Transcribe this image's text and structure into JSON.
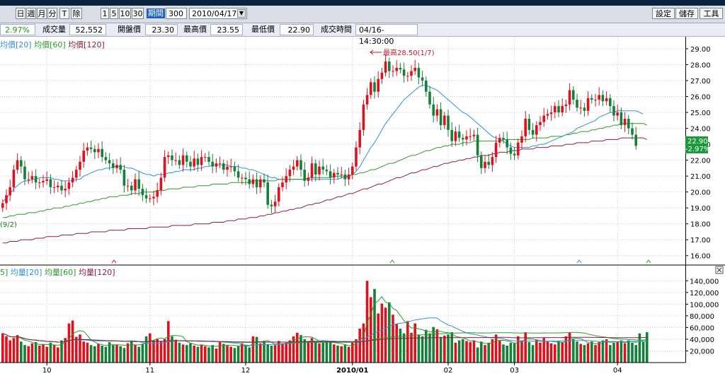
{
  "toolbar": {
    "period_buttons": [
      "日",
      "週",
      "月",
      "分",
      "T",
      "除"
    ],
    "number_buttons": [
      "1",
      "5",
      "10",
      "30"
    ],
    "period_label": "期間",
    "period_value": "300",
    "date_value": "2010/04/17",
    "right_buttons": [
      "設定",
      "儲存",
      "工具"
    ]
  },
  "quote": {
    "change_pct": "2.97%",
    "volume_label": "成交量",
    "volume_value": "52,552",
    "open_label": "開盤價",
    "open_value": "23.30",
    "high_label": "最高價",
    "high_value": "23.55",
    "low_label": "最低價",
    "low_value": "22.90",
    "time_label": "成交時間",
    "time_value": "04/16-14:30:00"
  },
  "price_legend": [
    "均價[20]",
    "均價[60]",
    "均價[120]"
  ],
  "volume_legend": [
    "5]",
    "均量[20]",
    "均量[60]",
    "均量[120]"
  ],
  "annotations": {
    "high": "最高28.50(1/7)",
    "low_left": "(9/2)"
  },
  "price_tags": {
    "last": "22.90",
    "change": "-2.97%"
  },
  "chart_data": [
    {
      "type": "candlestick",
      "x_tick_labels": [
        "10",
        "11",
        "12",
        "2010/01",
        "02",
        "03",
        "04"
      ],
      "y_tick_labels": [
        "16.00",
        "17.00",
        "18.00",
        "19.00",
        "20.00",
        "21.00",
        "22.00",
        "23.00",
        "24.00",
        "25.00",
        "26.00",
        "27.00",
        "28.00",
        "29.00"
      ],
      "ylim": [
        15.5,
        29.4
      ],
      "close": [
        19.3,
        19.8,
        20.3,
        21.4,
        22.0,
        21.6,
        20.8,
        20.8,
        21.0,
        20.6,
        20.6,
        20.7,
        20.8,
        20.3,
        20.3,
        20.4,
        20.1,
        20.2,
        20.6,
        20.9,
        21.4,
        21.9,
        22.6,
        22.8,
        22.7,
        22.5,
        22.7,
        22.2,
        22.0,
        21.8,
        21.5,
        21.7,
        21.4,
        20.4,
        20.4,
        20.1,
        20.8,
        20.2,
        19.8,
        19.6,
        19.6,
        19.7,
        20.1,
        20.9,
        22.2,
        22.3,
        22.0,
        22.0,
        21.7,
        22.3,
        21.9,
        21.6,
        22.1,
        21.7,
        22.2,
        22.2,
        21.9,
        21.6,
        21.8,
        21.8,
        21.4,
        21.6,
        21.6,
        21.3,
        20.9,
        20.9,
        20.8,
        20.5,
        20.8,
        20.3,
        20.8,
        20.6,
        19.2,
        19.1,
        19.4,
        20.3,
        20.6,
        21.0,
        21.4,
        21.6,
        22.0,
        21.4,
        20.7,
        20.9,
        21.8,
        21.1,
        21.6,
        21.4,
        21.3,
        20.9,
        21.2,
        21.1,
        21.1,
        20.8,
        21.1,
        21.6,
        22.8,
        23.9,
        25.5,
        26.1,
        26.9,
        26.3,
        27.1,
        27.5,
        28.2,
        27.6,
        27.6,
        27.8,
        27.7,
        27.3,
        27.3,
        27.6,
        27.8,
        27.2,
        27.0,
        26.3,
        25.5,
        24.8,
        25.2,
        24.2,
        24.8,
        23.9,
        23.2,
        23.8,
        23.4,
        23.3,
        23.5,
        23.5,
        23.6,
        22.3,
        21.5,
        21.9,
        21.7,
        22.2,
        23.1,
        23.4,
        23.3,
        22.8,
        22.4,
        22.3,
        23.1,
        23.5,
        24.6,
        23.9,
        23.6,
        24.2,
        24.4,
        24.8,
        24.9,
        25.0,
        25.4,
        25.0,
        25.4,
        25.5,
        26.4,
        25.8,
        25.3,
        25.3,
        25.1,
        25.9,
        25.8,
        25.8,
        26.1,
        25.7,
        25.9,
        25.4,
        24.8,
        25.0,
        24.2,
        24.6,
        24.0,
        23.6,
        22.9
      ],
      "series": [
        {
          "name": "均價[20]",
          "color": "#2f8fd8",
          "values": [
            19.4,
            19.6,
            19.9,
            20.2,
            20.4,
            20.6,
            20.7,
            20.7,
            20.8,
            20.8,
            20.9,
            20.9,
            20.9,
            20.9,
            20.8,
            20.8,
            20.7,
            20.7,
            20.7,
            20.7,
            20.8,
            20.8,
            21.0,
            21.1,
            21.2,
            21.3,
            21.4,
            21.4,
            21.5,
            21.5,
            21.6,
            21.6,
            21.6,
            21.6,
            21.5,
            21.5,
            21.4,
            21.3,
            21.2,
            21.1,
            21.1,
            21.0,
            21.1,
            21.1,
            21.1,
            21.2,
            21.2,
            21.3,
            21.3,
            21.4,
            21.4,
            21.4,
            21.4,
            21.5,
            21.5,
            21.6,
            21.6,
            21.7,
            21.7,
            21.7,
            21.7,
            21.7,
            21.6,
            21.6,
            21.6,
            21.5,
            21.5,
            21.4,
            21.4,
            21.3,
            21.2,
            21.1,
            21.0,
            20.9,
            20.9,
            20.8,
            20.8,
            20.8,
            20.8,
            20.8,
            20.8,
            20.8,
            20.8,
            20.8,
            20.8,
            20.8,
            20.8,
            20.8,
            20.8,
            20.8,
            20.8,
            20.8,
            20.9,
            20.9,
            21.0,
            21.1,
            21.3,
            21.6,
            22.0,
            22.4,
            22.8,
            23.1,
            23.5,
            23.9,
            24.3,
            24.6,
            24.9,
            25.2,
            25.5,
            25.8,
            26.0,
            26.2,
            26.4,
            26.6,
            26.7,
            26.7,
            26.6,
            26.5,
            26.4,
            26.2,
            26.0,
            25.8,
            25.6,
            25.4,
            25.2,
            25.0,
            24.9,
            24.7,
            24.5,
            24.3,
            24.1,
            23.9,
            23.7,
            23.5,
            23.4,
            23.3,
            23.2,
            23.0,
            22.9,
            22.8,
            22.8,
            22.8,
            22.8,
            22.8,
            22.9,
            22.9,
            23.0,
            23.0,
            23.1,
            23.2,
            23.3,
            23.4,
            23.5,
            23.6,
            23.7,
            23.8,
            24.0,
            24.1,
            24.2,
            24.3,
            24.4,
            24.5,
            24.7,
            24.8,
            24.9,
            25.0,
            25.0,
            25.1,
            25.1,
            25.1,
            25.1,
            25.1,
            25.1,
            25.0,
            24.9
          ]
        },
        {
          "name": "均價[60]",
          "color": "#2a9a2a",
          "values": [
            18.4,
            18.4,
            18.5,
            18.5,
            18.6,
            18.6,
            18.6,
            18.7,
            18.7,
            18.7,
            18.8,
            18.8,
            18.9,
            18.9,
            19.0,
            19.0,
            19.0,
            19.1,
            19.1,
            19.2,
            19.2,
            19.3,
            19.3,
            19.4,
            19.4,
            19.5,
            19.5,
            19.6,
            19.6,
            19.7,
            19.7,
            19.7,
            19.8,
            19.8,
            19.8,
            19.9,
            19.9,
            19.9,
            20.0,
            20.0,
            20.0,
            20.0,
            20.1,
            20.1,
            20.1,
            20.2,
            20.2,
            20.2,
            20.2,
            20.3,
            20.3,
            20.3,
            20.3,
            20.4,
            20.4,
            20.4,
            20.4,
            20.5,
            20.5,
            20.5,
            20.5,
            20.5,
            20.6,
            20.6,
            20.6,
            20.6,
            20.6,
            20.6,
            20.7,
            20.7,
            20.7,
            20.7,
            20.7,
            20.7,
            20.7,
            20.8,
            20.8,
            20.8,
            20.8,
            20.8,
            20.8,
            20.8,
            20.8,
            20.9,
            20.9,
            20.9,
            20.9,
            20.9,
            20.9,
            20.9,
            21.0,
            21.0,
            21.0,
            21.0,
            21.0,
            21.1,
            21.1,
            21.2,
            21.2,
            21.3,
            21.4,
            21.4,
            21.5,
            21.6,
            21.7,
            21.8,
            21.8,
            21.9,
            22.0,
            22.1,
            22.2,
            22.3,
            22.3,
            22.4,
            22.5,
            22.6,
            22.6,
            22.7,
            22.8,
            22.8,
            22.9,
            22.9,
            23.0,
            23.0,
            23.0,
            23.1,
            23.1,
            23.1,
            23.2,
            23.2,
            23.2,
            23.2,
            23.2,
            23.2,
            23.2,
            23.2,
            23.3,
            23.3,
            23.3,
            23.3,
            23.3,
            23.3,
            23.3,
            23.3,
            23.4,
            23.4,
            23.4,
            23.4,
            23.4,
            23.5,
            23.5,
            23.5,
            23.5,
            23.6,
            23.6,
            23.7,
            23.7,
            23.8,
            23.8,
            23.8,
            23.9,
            23.9,
            24.0,
            24.0,
            24.1,
            24.1,
            24.2,
            24.2,
            24.3,
            24.3,
            24.3,
            24.3,
            24.3,
            24.3,
            24.3,
            24.2
          ]
        },
        {
          "name": "均價[120]",
          "color": "#8a1e3c",
          "values": [
            16.8,
            16.8,
            16.9,
            16.9,
            16.9,
            17.0,
            17.0,
            17.0,
            17.0,
            17.1,
            17.1,
            17.1,
            17.2,
            17.2,
            17.2,
            17.2,
            17.3,
            17.3,
            17.3,
            17.3,
            17.4,
            17.4,
            17.4,
            17.4,
            17.5,
            17.5,
            17.5,
            17.5,
            17.5,
            17.6,
            17.6,
            17.6,
            17.6,
            17.6,
            17.7,
            17.7,
            17.7,
            17.7,
            17.7,
            17.7,
            17.8,
            17.8,
            17.8,
            17.8,
            17.8,
            17.8,
            17.9,
            17.9,
            17.9,
            17.9,
            17.9,
            17.9,
            18.0,
            18.0,
            18.0,
            18.0,
            18.0,
            18.1,
            18.1,
            18.1,
            18.1,
            18.2,
            18.2,
            18.2,
            18.3,
            18.3,
            18.3,
            18.4,
            18.4,
            18.4,
            18.5,
            18.5,
            18.6,
            18.6,
            18.7,
            18.7,
            18.8,
            18.8,
            18.9,
            18.9,
            19.0,
            19.0,
            19.1,
            19.2,
            19.2,
            19.3,
            19.3,
            19.4,
            19.5,
            19.5,
            19.6,
            19.7,
            19.7,
            19.8,
            19.9,
            19.9,
            20.0,
            20.1,
            20.2,
            20.2,
            20.3,
            20.4,
            20.5,
            20.5,
            20.6,
            20.7,
            20.8,
            20.9,
            20.9,
            21.0,
            21.1,
            21.2,
            21.2,
            21.3,
            21.4,
            21.4,
            21.5,
            21.6,
            21.6,
            21.7,
            21.8,
            21.8,
            21.9,
            21.9,
            22.0,
            22.0,
            22.1,
            22.1,
            22.2,
            22.2,
            22.3,
            22.3,
            22.3,
            22.4,
            22.4,
            22.5,
            22.5,
            22.5,
            22.6,
            22.6,
            22.6,
            22.7,
            22.7,
            22.7,
            22.7,
            22.8,
            22.8,
            22.8,
            22.8,
            22.9,
            22.9,
            22.9,
            22.9,
            23.0,
            23.0,
            23.0,
            23.1,
            23.1,
            23.1,
            23.1,
            23.2,
            23.2,
            23.2,
            23.2,
            23.3,
            23.3,
            23.3,
            23.3,
            23.4,
            23.4,
            23.4,
            23.4,
            23.4,
            23.4,
            23.4,
            23.3
          ]
        }
      ]
    },
    {
      "type": "bar",
      "y_tick_labels": [
        "20,000",
        "40,000",
        "60,000",
        "80,000",
        "100,000",
        "120,000",
        "140,000"
      ],
      "ylim": [
        0,
        150000
      ],
      "volume": [
        50000,
        45000,
        38000,
        42000,
        47000,
        36000,
        30000,
        28000,
        33000,
        35000,
        29000,
        31000,
        27000,
        34000,
        30000,
        26000,
        38000,
        42000,
        67000,
        72000,
        44000,
        48000,
        36000,
        34000,
        30000,
        28000,
        32000,
        29000,
        27000,
        35000,
        30000,
        31000,
        28000,
        25000,
        33000,
        36000,
        30000,
        27000,
        32000,
        45000,
        50000,
        38000,
        40000,
        36000,
        40000,
        71000,
        45000,
        39000,
        34000,
        31000,
        30000,
        33000,
        29000,
        27000,
        31000,
        28000,
        26000,
        30000,
        24000,
        35000,
        32000,
        29000,
        27000,
        25000,
        28000,
        33000,
        30000,
        26000,
        45000,
        44000,
        33000,
        36000,
        31000,
        29000,
        30000,
        37000,
        33000,
        34000,
        38000,
        45000,
        51000,
        47000,
        40000,
        37000,
        42000,
        35000,
        33000,
        34000,
        37000,
        36000,
        31000,
        29000,
        28000,
        30000,
        27000,
        34000,
        40000,
        58000,
        67000,
        140000,
        112000,
        126000,
        84000,
        101000,
        94000,
        103000,
        82000,
        66000,
        58000,
        50000,
        71000,
        51000,
        67000,
        48000,
        45000,
        56000,
        50000,
        61000,
        57000,
        44000,
        46000,
        48000,
        52000,
        34000,
        38000,
        40000,
        37000,
        35000,
        38000,
        26000,
        36000,
        30000,
        34000,
        40000,
        48000,
        38000,
        31000,
        29000,
        34000,
        33000,
        45000,
        38000,
        52000,
        35000,
        30000,
        39000,
        34000,
        42000,
        36000,
        33000,
        31000,
        36000,
        35000,
        45000,
        51000,
        40000,
        36000,
        32000,
        30000,
        33000,
        36000,
        30000,
        35000,
        38000,
        40000,
        30000,
        34000,
        36000,
        38000,
        33000,
        38000,
        34000,
        30000,
        50000,
        36000,
        52000
      ]
    }
  ]
}
